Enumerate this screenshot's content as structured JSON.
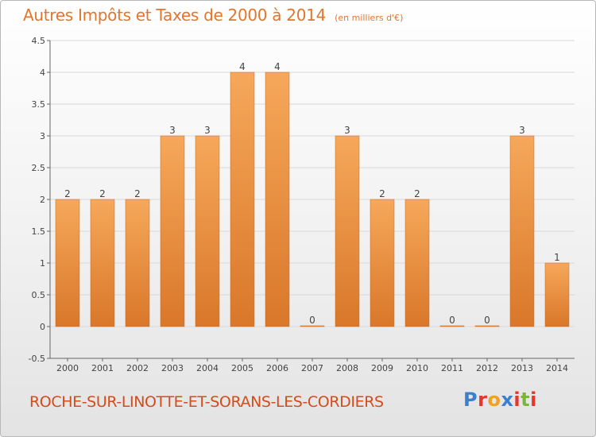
{
  "header": {
    "title": "Autres Impôts et Taxes de 2000 à 2014",
    "subtitle": "(en milliers d'€)"
  },
  "footer": {
    "commune": "ROCHE-SUR-LINOTTE-ET-SORANS-LES-CORDIERS",
    "brand": "Proxiti",
    "brand_colors": [
      "#3b7fd0",
      "#e8342b",
      "#f0a028",
      "#3b7fd0",
      "#e8342b",
      "#7ab53c",
      "#e8342b"
    ]
  },
  "colors": {
    "bar_top": "#f6a85a",
    "bar_bottom": "#d9772a",
    "axis": "#666666",
    "grid": "#d8d8d8",
    "label": "#444444"
  },
  "chart_data": {
    "type": "bar",
    "categories": [
      "2000",
      "2001",
      "2002",
      "2003",
      "2004",
      "2005",
      "2006",
      "2007",
      "2008",
      "2009",
      "2010",
      "2011",
      "2012",
      "2013",
      "2014"
    ],
    "values": [
      2,
      2,
      2,
      3,
      3,
      4,
      4,
      0,
      3,
      2,
      2,
      0,
      0,
      3,
      1
    ],
    "data_labels": [
      "2",
      "2",
      "2",
      "3",
      "3",
      "4",
      "4",
      "0",
      "3",
      "2",
      "2",
      "0",
      "0",
      "3",
      "1"
    ],
    "ylim": [
      -0.5,
      4.5
    ],
    "yticks": [
      -0.5,
      0,
      0.5,
      1,
      1.5,
      2,
      2.5,
      3,
      3.5,
      4,
      4.5
    ],
    "ytick_labels": [
      "-0.5",
      "0",
      "0.5",
      "1",
      "1.5",
      "2",
      "2.5",
      "3",
      "3.5",
      "4",
      "4.5"
    ],
    "grid": "horizontal",
    "legend": "none"
  }
}
